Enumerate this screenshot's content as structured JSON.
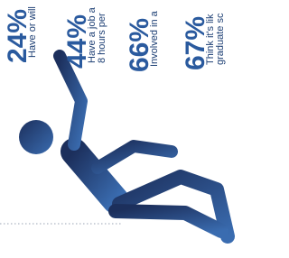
{
  "stats": [
    {
      "value": "24%",
      "lines": [
        "Have or will"
      ]
    },
    {
      "value": "44%",
      "lines": [
        "Have a job a",
        "8 hours per"
      ]
    },
    {
      "value": "66%",
      "lines": [
        "Involved in a"
      ]
    },
    {
      "value": "67%",
      "lines": [
        "Think it's lik",
        "graduate sc"
      ]
    }
  ]
}
